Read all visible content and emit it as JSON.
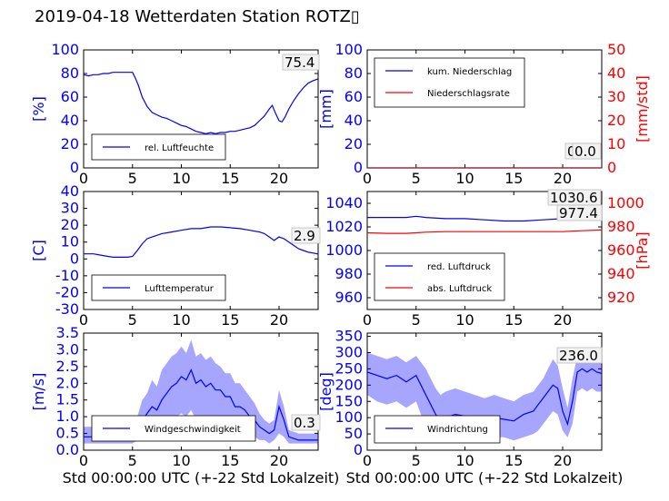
{
  "title": "2019-04-18 Wetterdaten Station ROTZ▯",
  "chart_data": [
    {
      "id": "humidity",
      "type": "line",
      "ylabel": "[%]",
      "ylabel_color": "#0000ff",
      "xlim": [
        0,
        24
      ],
      "ylim": [
        0,
        100
      ],
      "yticks": [
        0,
        20,
        40,
        60,
        80,
        100
      ],
      "xticks": [
        0,
        5,
        10,
        15,
        20
      ],
      "legend": [
        "rel. Luftfeuchte"
      ],
      "legend_position": "lower-left",
      "annotations": [
        "75.4"
      ],
      "series": [
        {
          "name": "rel. Luftfeuchte",
          "color": "#0000ff",
          "x": [
            0,
            0.5,
            1,
            1.5,
            2,
            2.5,
            3,
            3.5,
            4,
            4.5,
            5,
            5.3,
            5.6,
            6,
            6.5,
            7,
            7.5,
            8,
            8.5,
            9,
            9.5,
            10,
            10.5,
            11,
            11.5,
            12,
            12.5,
            13,
            13.5,
            14,
            14.5,
            15,
            15.5,
            16,
            16.5,
            17,
            17.5,
            18,
            18.5,
            19,
            19.3,
            19.6,
            20,
            20.3,
            20.6,
            21,
            21.5,
            22,
            22.5,
            23,
            23.5,
            24
          ],
          "y": [
            79,
            78,
            79,
            79,
            80,
            80,
            81,
            81,
            81,
            81,
            81,
            76,
            70,
            60,
            52,
            47,
            45,
            43,
            42,
            40,
            38,
            36,
            35,
            33,
            31,
            30,
            29,
            30,
            29,
            30,
            30,
            31,
            31,
            32,
            33,
            34,
            36,
            40,
            44,
            50,
            53,
            47,
            40,
            39,
            43,
            50,
            57,
            63,
            68,
            72,
            74,
            75.4
          ]
        }
      ]
    },
    {
      "id": "precipitation",
      "type": "line",
      "ylabel": "[mm]",
      "ylabel_color": "#0000ff",
      "y2label": "[mm/std]",
      "y2label_color": "#ff0000",
      "xlim": [
        0,
        24
      ],
      "ylim": [
        0,
        100
      ],
      "y2lim": [
        0,
        50
      ],
      "yticks": [
        0,
        20,
        40,
        60,
        80,
        100
      ],
      "y2ticks": [
        0,
        10,
        20,
        30,
        40,
        50
      ],
      "xticks": [
        0,
        5,
        10,
        15,
        20
      ],
      "legend": [
        "kum. Niederschlag",
        "Niederschlagsrate"
      ],
      "legend_position": "upper-left",
      "annotations": [
        "0.0",
        "0.0"
      ],
      "series": [
        {
          "name": "kum. Niederschlag",
          "color": "#0000ff",
          "axis": "left",
          "x": [
            0,
            24
          ],
          "y": [
            0,
            0
          ]
        },
        {
          "name": "Niederschlagsrate",
          "color": "#ff0000",
          "axis": "right",
          "x": [
            0,
            24
          ],
          "y": [
            0,
            0
          ]
        }
      ]
    },
    {
      "id": "temperature",
      "type": "line",
      "ylabel": "[C]",
      "ylabel_color": "#0000ff",
      "xlim": [
        0,
        24
      ],
      "ylim": [
        -30,
        40
      ],
      "yticks": [
        -30,
        -20,
        -10,
        0,
        10,
        20,
        30,
        40
      ],
      "xticks": [
        0,
        5,
        10,
        15,
        20
      ],
      "legend": [
        "Lufttemperatur"
      ],
      "legend_position": "lower-left",
      "annotations": [
        "2.9"
      ],
      "series": [
        {
          "name": "Lufttemperatur",
          "color": "#0000ff",
          "x": [
            0,
            0.5,
            1,
            1.5,
            2,
            2.5,
            3,
            3.5,
            4,
            4.5,
            5,
            5.5,
            6,
            6.5,
            7,
            7.5,
            8,
            9,
            10,
            11,
            12,
            13,
            14,
            15,
            16,
            17,
            18,
            18.5,
            19,
            19.5,
            20,
            20.5,
            21,
            21.5,
            22,
            22.5,
            23,
            23.5,
            24
          ],
          "y": [
            3,
            3,
            3,
            2.5,
            2,
            1.5,
            1,
            1,
            1,
            1,
            1.5,
            5,
            9,
            12,
            13,
            14,
            15,
            16,
            17,
            18,
            18,
            19,
            19,
            18.5,
            18,
            17,
            16,
            15,
            13,
            11,
            13,
            12,
            10,
            8,
            6,
            5,
            4,
            3.5,
            2.9
          ]
        }
      ]
    },
    {
      "id": "pressure",
      "type": "line",
      "y2label": "[hPa]",
      "y2label_color": "#ff0000",
      "xlim": [
        0,
        24
      ],
      "ylim": [
        950,
        1050
      ],
      "y2lim": [
        910,
        1010
      ],
      "yticks": [
        960,
        980,
        1000,
        1020,
        1040
      ],
      "y2ticks": [
        920,
        940,
        960,
        980,
        1000
      ],
      "xticks": [
        0,
        5,
        10,
        15,
        20
      ],
      "legend": [
        "red. Luftdruck",
        "abs. Luftdruck"
      ],
      "legend_position": "lower-left",
      "annotations": [
        "1030.6",
        "977.4"
      ],
      "series": [
        {
          "name": "red. Luftdruck",
          "color": "#0000ff",
          "axis": "left",
          "x": [
            0,
            2,
            4,
            5,
            6,
            8,
            10,
            12,
            14,
            16,
            18,
            20,
            22,
            24
          ],
          "y": [
            1028,
            1028,
            1028,
            1029,
            1028,
            1027,
            1027,
            1026,
            1025,
            1025,
            1026,
            1027,
            1029,
            1030.6
          ]
        },
        {
          "name": "abs. Luftdruck",
          "color": "#ff0000",
          "axis": "right",
          "x": [
            0,
            2,
            4,
            5,
            6,
            8,
            10,
            12,
            14,
            16,
            18,
            20,
            22,
            24
          ],
          "y": [
            975,
            974.5,
            974.5,
            975,
            975.5,
            976,
            976,
            976,
            976,
            976,
            976,
            976,
            976.8,
            977.4
          ]
        }
      ]
    },
    {
      "id": "windspeed",
      "type": "line",
      "ylabel": "[m/s]",
      "ylabel_color": "#0000ff",
      "xlabel": "Std 00:00:00 UTC (+-22 Std Lokalzeit)",
      "xlim": [
        0,
        24
      ],
      "ylim": [
        0,
        3.5
      ],
      "yticks": [
        0.0,
        0.5,
        1.0,
        1.5,
        2.0,
        2.5,
        3.0,
        3.5
      ],
      "xticks": [
        0,
        5,
        10,
        15,
        20
      ],
      "legend": [
        "Windgeschwindigkeit"
      ],
      "legend_position": "lower-left",
      "annotations": [
        "0.3"
      ],
      "series": [
        {
          "name": "Windgeschwindigkeit",
          "color": "#0000ff",
          "x": [
            0,
            1,
            2,
            3,
            4,
            5,
            5.5,
            6,
            6.5,
            7,
            7.5,
            8,
            8.5,
            9,
            9.5,
            10,
            10.5,
            11,
            11.5,
            12,
            12.5,
            13,
            13.5,
            14,
            14.5,
            15,
            15.5,
            16,
            16.5,
            17,
            17.5,
            18,
            18.5,
            19,
            19.5,
            20,
            20.5,
            21,
            22,
            23,
            24
          ],
          "y": [
            0.4,
            0.4,
            0.5,
            0.4,
            0.5,
            0.5,
            0.6,
            0.9,
            1.1,
            1.3,
            1.2,
            1.5,
            1.7,
            1.9,
            2.0,
            2.2,
            2.1,
            2.4,
            2.0,
            2.1,
            1.9,
            2.0,
            1.8,
            1.8,
            1.6,
            1.6,
            1.3,
            1.3,
            1.2,
            1.0,
            0.9,
            0.7,
            0.6,
            0.5,
            0.6,
            1.3,
            0.9,
            0.4,
            0.3,
            0.3,
            0.3
          ],
          "min": [
            0.2,
            0.2,
            0.2,
            0.2,
            0.2,
            0.2,
            0.3,
            0.5,
            0.6,
            0.7,
            0.6,
            0.7,
            0.8,
            0.9,
            1.0,
            1.1,
            1.0,
            1.2,
            0.9,
            1.0,
            0.9,
            1.0,
            0.9,
            0.9,
            0.8,
            0.8,
            0.6,
            0.6,
            0.6,
            0.5,
            0.4,
            0.3,
            0.3,
            0.2,
            0.3,
            0.5,
            0.4,
            0.2,
            0.2,
            0.2,
            0.2
          ],
          "max": [
            0.7,
            0.7,
            0.8,
            0.7,
            0.8,
            0.8,
            1.0,
            1.5,
            1.7,
            2.1,
            1.9,
            2.4,
            2.6,
            2.8,
            2.9,
            3.1,
            2.9,
            3.3,
            2.8,
            2.9,
            2.7,
            2.8,
            2.6,
            2.5,
            2.3,
            2.3,
            2.0,
            2.0,
            1.8,
            1.6,
            1.4,
            1.1,
            0.9,
            0.8,
            0.9,
            1.8,
            1.3,
            0.6,
            0.5,
            0.5,
            0.5
          ]
        }
      ]
    },
    {
      "id": "winddirection",
      "type": "line",
      "ylabel": "[deg]",
      "ylabel_color": "#0000ff",
      "xlabel": "Std 00:00:00 UTC (+-22 Std Lokalzeit)",
      "xlim": [
        0,
        24
      ],
      "ylim": [
        0,
        360
      ],
      "yticks": [
        0,
        50,
        100,
        150,
        200,
        250,
        300,
        350
      ],
      "xticks": [
        0,
        5,
        10,
        15,
        20
      ],
      "legend": [
        "Windrichtung"
      ],
      "legend_position": "lower-left",
      "annotations": [
        "236.0"
      ],
      "series": [
        {
          "name": "Windrichtung",
          "color": "#0000ff",
          "x": [
            0,
            1,
            2,
            3,
            4,
            5,
            5.5,
            6,
            6.5,
            7,
            7.5,
            8,
            9,
            10,
            11,
            12,
            13,
            14,
            15,
            16,
            17,
            17.5,
            18,
            18.5,
            19,
            19.5,
            20,
            20.5,
            21,
            21.5,
            22,
            22.5,
            23,
            23.5,
            24
          ],
          "y": [
            240,
            230,
            220,
            230,
            210,
            230,
            200,
            170,
            140,
            110,
            90,
            100,
            110,
            105,
            100,
            95,
            100,
            95,
            90,
            110,
            120,
            140,
            160,
            180,
            200,
            190,
            120,
            80,
            150,
            240,
            250,
            240,
            250,
            240,
            236
          ],
          "min": [
            170,
            150,
            140,
            150,
            130,
            150,
            110,
            80,
            50,
            40,
            30,
            30,
            40,
            40,
            40,
            40,
            40,
            40,
            30,
            40,
            50,
            60,
            80,
            100,
            120,
            110,
            60,
            40,
            80,
            180,
            190,
            180,
            190,
            180,
            180
          ],
          "max": [
            300,
            290,
            280,
            290,
            270,
            290,
            270,
            250,
            220,
            190,
            170,
            180,
            190,
            180,
            170,
            160,
            170,
            160,
            150,
            170,
            180,
            200,
            220,
            250,
            280,
            260,
            190,
            130,
            220,
            290,
            300,
            290,
            300,
            290,
            290
          ]
        }
      ]
    }
  ]
}
